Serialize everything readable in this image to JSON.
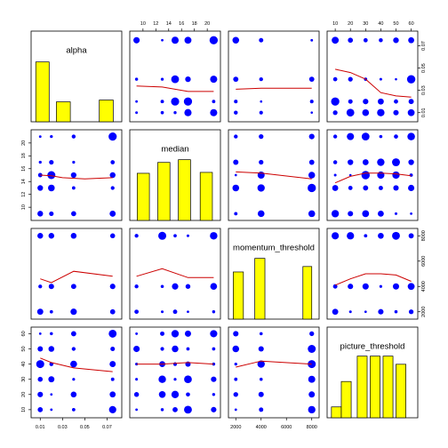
{
  "chart_data": {
    "type": "scatter",
    "variables": [
      "alpha",
      "median",
      "momentum_threshold",
      "picture_threshold"
    ],
    "ranges": {
      "alpha": [
        0.005,
        0.08
      ],
      "median": [
        8.5,
        21.5
      ],
      "momentum_threshold": [
        1700,
        8300
      ],
      "picture_threshold": [
        7,
        62
      ]
    },
    "ticks": {
      "alpha": [
        0.01,
        0.03,
        0.05,
        0.07
      ],
      "median": [
        10,
        12,
        14,
        16,
        18,
        20
      ],
      "momentum_threshold": [
        2000,
        4000,
        6000,
        8000
      ],
      "picture_threshold": [
        10,
        20,
        30,
        40,
        50,
        60
      ]
    },
    "tick_labels": {
      "alpha": [
        "0.01",
        "0.03",
        "0.05",
        "0.07"
      ],
      "median": [
        "10",
        "12",
        "14",
        "16",
        "18",
        "20"
      ],
      "momentum_threshold": [
        "2000",
        "4000",
        "6000",
        "8000"
      ],
      "picture_threshold": [
        "10",
        "20",
        "30",
        "40",
        "50",
        "60"
      ]
    },
    "points": {
      "alpha": [
        0.01,
        0.02,
        0.04,
        0.075
      ],
      "median": [
        9,
        13,
        15,
        17,
        21
      ],
      "momentum_threshold": [
        2000,
        4000,
        8000
      ],
      "picture_threshold": [
        10,
        20,
        30,
        40,
        50,
        60
      ]
    },
    "histograms": {
      "alpha": [
        {
          "x0": 0.006,
          "x1": 0.018,
          "v": 0.66
        },
        {
          "x0": 0.0245,
          "x1": 0.037,
          "v": 0.22
        },
        {
          "x0": 0.063,
          "x1": 0.0755,
          "v": 0.24
        }
      ],
      "median": [
        {
          "x0": 9.1,
          "x1": 11.0,
          "v": 0.52
        },
        {
          "x0": 12.3,
          "x1": 14.2,
          "v": 0.64
        },
        {
          "x0": 15.5,
          "x1": 17.4,
          "v": 0.67
        },
        {
          "x0": 18.9,
          "x1": 20.8,
          "v": 0.53
        }
      ],
      "momentum_threshold": [
        {
          "x0": 1800,
          "x1": 2600,
          "v": 0.52
        },
        {
          "x0": 3500,
          "x1": 4300,
          "v": 0.67
        },
        {
          "x0": 7300,
          "x1": 8000,
          "v": 0.58
        }
      ],
      "picture_threshold": [
        {
          "x0": 7.5,
          "x1": 14,
          "v": 0.12
        },
        {
          "x0": 14,
          "x1": 20.5,
          "v": 0.4
        },
        {
          "x0": 24.5,
          "x1": 31,
          "v": 0.68
        },
        {
          "x0": 33,
          "x1": 39.5,
          "v": 0.68
        },
        {
          "x0": 41.5,
          "x1": 48,
          "v": 0.68
        },
        {
          "x0": 50,
          "x1": 56.5,
          "v": 0.59
        }
      ]
    },
    "smoothers": {
      "alpha|median": [
        [
          0.01,
          15.0
        ],
        [
          0.02,
          14.9
        ],
        [
          0.03,
          14.6
        ],
        [
          0.05,
          14.4
        ],
        [
          0.075,
          14.6
        ]
      ],
      "alpha|momentum_threshold": [
        [
          0.01,
          4600
        ],
        [
          0.02,
          4300
        ],
        [
          0.04,
          5200
        ],
        [
          0.075,
          4800
        ]
      ],
      "alpha|picture_threshold": [
        [
          0.01,
          44
        ],
        [
          0.02,
          41
        ],
        [
          0.04,
          37.5
        ],
        [
          0.075,
          35
        ]
      ],
      "median|alpha": [
        [
          9,
          0.034
        ],
        [
          13,
          0.033
        ],
        [
          15,
          0.031
        ],
        [
          17,
          0.029
        ],
        [
          21,
          0.029
        ]
      ],
      "median|momentum_threshold": [
        [
          9,
          4800
        ],
        [
          13,
          5400
        ],
        [
          17,
          4700
        ],
        [
          21,
          4700
        ]
      ],
      "median|picture_threshold": [
        [
          9,
          40
        ],
        [
          13,
          40
        ],
        [
          17,
          41
        ],
        [
          21,
          40
        ]
      ],
      "momentum_threshold|alpha": [
        [
          2000,
          0.031
        ],
        [
          4000,
          0.032
        ],
        [
          8000,
          0.032
        ]
      ],
      "momentum_threshold|median": [
        [
          2000,
          15.5
        ],
        [
          4000,
          15.3
        ],
        [
          8000,
          14.4
        ]
      ],
      "momentum_threshold|picture_threshold": [
        [
          2000,
          38
        ],
        [
          4000,
          42
        ],
        [
          8000,
          40
        ]
      ],
      "picture_threshold|alpha": [
        [
          10,
          0.049
        ],
        [
          20,
          0.046
        ],
        [
          30,
          0.04
        ],
        [
          40,
          0.028
        ],
        [
          50,
          0.025
        ],
        [
          60,
          0.024
        ]
      ],
      "picture_threshold|median": [
        [
          10,
          13.8
        ],
        [
          20,
          14.8
        ],
        [
          30,
          15.3
        ],
        [
          40,
          15.3
        ],
        [
          50,
          15.2
        ],
        [
          60,
          14.9
        ]
      ],
      "picture_threshold|momentum_threshold": [
        [
          10,
          4100
        ],
        [
          20,
          4600
        ],
        [
          30,
          5000
        ],
        [
          40,
          5000
        ],
        [
          50,
          4900
        ],
        [
          60,
          4400
        ]
      ]
    },
    "colors": {
      "points": "#0000ff",
      "smoother": "#cc0000",
      "bars": "#ffff00",
      "bar_edge": "#000000"
    },
    "grid": false,
    "legend": "none"
  }
}
